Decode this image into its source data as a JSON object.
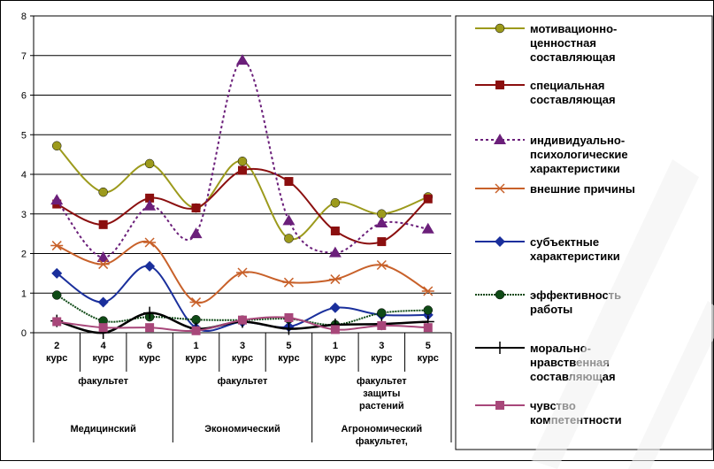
{
  "chart_data": {
    "type": "line",
    "ylim": [
      0,
      8
    ],
    "yticks": [
      "0",
      "1",
      "2",
      "3",
      "4",
      "5",
      "6",
      "7",
      "8"
    ],
    "grid": true,
    "legend_placement": "right",
    "categories": [
      "2 курс",
      "4 курс",
      "6 курс",
      "1 курс",
      "3 курс",
      "5 курс",
      "1 курс",
      "3 курс",
      "5 курс"
    ],
    "category_lines": [
      [
        "2",
        "курс"
      ],
      [
        "4",
        "курс"
      ],
      [
        "6",
        "курс"
      ],
      [
        "1",
        "курс"
      ],
      [
        "3",
        "курс"
      ],
      [
        "5",
        "курс"
      ],
      [
        "1",
        "курс"
      ],
      [
        "3",
        "курс"
      ],
      [
        "5",
        "курс"
      ]
    ],
    "groups_row1": [
      [
        "факультет"
      ],
      [
        "факультет"
      ],
      [
        "факультет",
        "защиты",
        "растений"
      ]
    ],
    "groups_row2": [
      [
        "Медицинский"
      ],
      [
        "Экономический"
      ],
      [
        "Агрономический",
        "факультет,"
      ]
    ],
    "series": [
      {
        "name": "мотивационно-ценностная составляющая",
        "legend_lines": [
          "мотивационно-",
          "ценностная",
          "составляющая"
        ],
        "color": "#9c9a1c",
        "marker": "circle",
        "dash": "",
        "values": [
          4.72,
          3.55,
          4.27,
          3.15,
          4.33,
          2.38,
          3.28,
          3.0,
          3.43
        ]
      },
      {
        "name": "специальная составляющая",
        "legend_lines": [
          "специальная",
          "составляющая"
        ],
        "color": "#8b0f0f",
        "marker": "square",
        "dash": "",
        "values": [
          3.25,
          2.73,
          3.4,
          3.15,
          4.1,
          3.82,
          2.57,
          2.3,
          3.38
        ]
      },
      {
        "name": "индивидуально-психологические характеристики",
        "legend_lines": [
          "индивидуально-",
          "психологические",
          "характеристики"
        ],
        "color": "#6b1f7a",
        "marker": "triangle",
        "dash": "3,3",
        "values": [
          3.35,
          1.9,
          3.2,
          2.5,
          6.88,
          2.83,
          2.02,
          2.77,
          2.62
        ]
      },
      {
        "name": "внешние причины",
        "legend_lines": [
          "внешние причины"
        ],
        "color": "#c8612a",
        "marker": "star",
        "dash": "",
        "values": [
          2.2,
          1.73,
          2.28,
          0.77,
          1.52,
          1.27,
          1.35,
          1.71,
          1.05
        ]
      },
      {
        "name": "субъектные характеристики",
        "legend_lines": [
          "субъектные",
          "характеристики"
        ],
        "color": "#1a2f9c",
        "marker": "diamond",
        "dash": "",
        "values": [
          1.5,
          0.77,
          1.68,
          0.12,
          0.27,
          0.15,
          0.63,
          0.45,
          0.45
        ]
      },
      {
        "name": "эффективность работы",
        "legend_lines": [
          "эффективность",
          "работы"
        ],
        "color": "#0f4a16",
        "marker": "circle",
        "dash": "2,1",
        "values": [
          0.95,
          0.3,
          0.4,
          0.33,
          0.32,
          0.35,
          0.2,
          0.5,
          0.57
        ]
      },
      {
        "name": "морально-нравственная составляющая",
        "legend_lines": [
          "морально-",
          "нравственная",
          "составляющая"
        ],
        "color": "#000000",
        "marker": "plus",
        "dash": "",
        "values": [
          0.3,
          0.0,
          0.5,
          0.1,
          0.28,
          0.1,
          0.2,
          0.22,
          0.28
        ]
      },
      {
        "name": "чувство компетентности",
        "legend_lines": [
          "чувство",
          "компетентности"
        ],
        "color": "#a8477a",
        "marker": "square",
        "dash": "",
        "values": [
          0.28,
          0.13,
          0.13,
          0.05,
          0.32,
          0.38,
          0.08,
          0.18,
          0.13
        ]
      }
    ]
  }
}
